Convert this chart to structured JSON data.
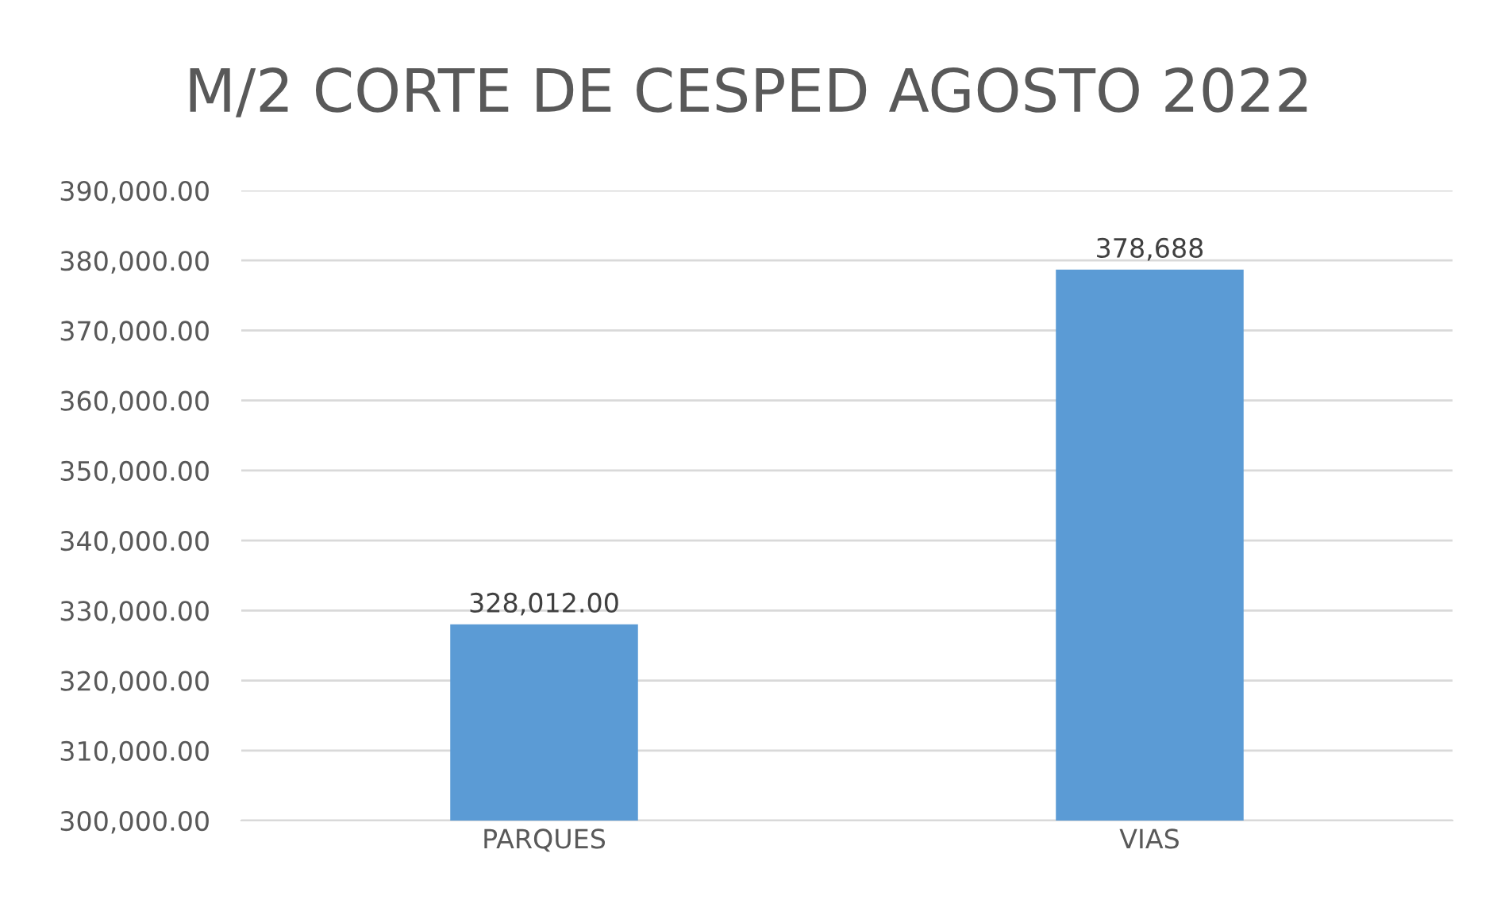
{
  "chart_data": {
    "type": "bar",
    "title": "M/2 CORTE DE CESPED AGOSTO 2022",
    "categories": [
      "PARQUES",
      "VIAS"
    ],
    "values": [
      328012,
      378688
    ],
    "value_labels": [
      "328,012.00",
      "378,688"
    ],
    "color": "#5b9bd5",
    "ylim": [
      300000,
      390000
    ],
    "yticks": [
      {
        "value": 300000,
        "label": "300,000.00"
      },
      {
        "value": 310000,
        "label": "310,000.00"
      },
      {
        "value": 320000,
        "label": "320,000.00"
      },
      {
        "value": 330000,
        "label": "330,000.00"
      },
      {
        "value": 340000,
        "label": "340,000.00"
      },
      {
        "value": 350000,
        "label": "350,000.00"
      },
      {
        "value": 360000,
        "label": "360,000.00"
      },
      {
        "value": 370000,
        "label": "370,000.00"
      },
      {
        "value": 380000,
        "label": "380,000.00"
      },
      {
        "value": 390000,
        "label": "390,000.00"
      }
    ],
    "grid": "y",
    "legend": false
  }
}
